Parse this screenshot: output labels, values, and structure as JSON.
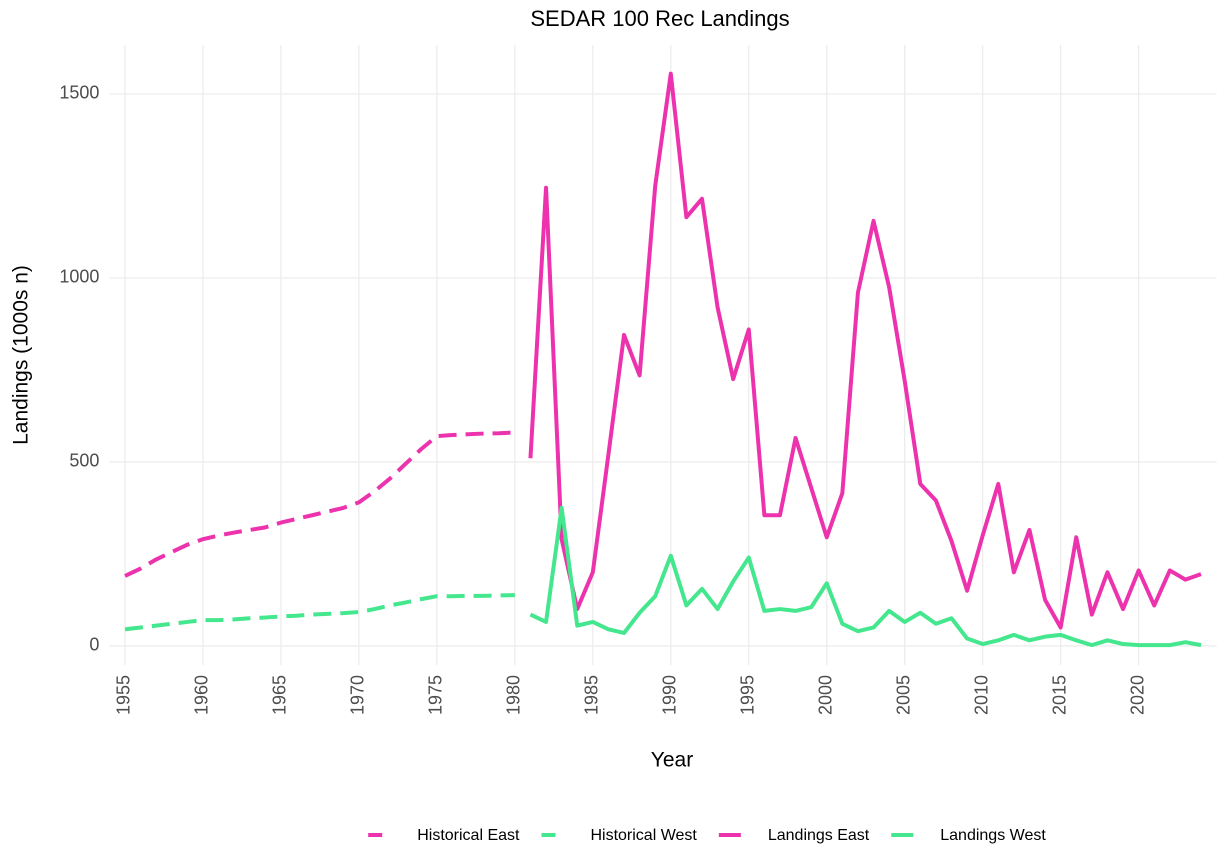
{
  "chart_data": {
    "type": "line",
    "title": "SEDAR 100 Rec Landings",
    "xlabel": "Year",
    "ylabel": "Landings (1000s n)",
    "x": [
      1955,
      1956,
      1957,
      1958,
      1959,
      1960,
      1961,
      1962,
      1963,
      1964,
      1965,
      1966,
      1967,
      1968,
      1969,
      1970,
      1971,
      1972,
      1973,
      1974,
      1975,
      1976,
      1977,
      1978,
      1979,
      1980,
      1981,
      1982,
      1983,
      1984,
      1985,
      1986,
      1987,
      1988,
      1989,
      1990,
      1991,
      1992,
      1993,
      1994,
      1995,
      1996,
      1997,
      1998,
      1999,
      2000,
      2001,
      2002,
      2003,
      2004,
      2005,
      2006,
      2007,
      2008,
      2009,
      2010,
      2011,
      2012,
      2013,
      2014,
      2015,
      2016,
      2017,
      2018,
      2019,
      2020,
      2021,
      2022,
      2023,
      2024
    ],
    "series": [
      {
        "name": "Historical East",
        "color": "#ec33ad",
        "linestyle": "dashed",
        "values": [
          190,
          210,
          235,
          255,
          275,
          290,
          300,
          308,
          315,
          322,
          335,
          345,
          355,
          365,
          375,
          390,
          420,
          455,
          495,
          535,
          570,
          573,
          575,
          577,
          578,
          580,
          null,
          null,
          null,
          null,
          null,
          null,
          null,
          null,
          null,
          null,
          null,
          null,
          null,
          null,
          null,
          null,
          null,
          null,
          null,
          null,
          null,
          null,
          null,
          null,
          null,
          null,
          null,
          null,
          null,
          null,
          null,
          null,
          null,
          null,
          null,
          null,
          null,
          null,
          null,
          null,
          null,
          null,
          null,
          null
        ]
      },
      {
        "name": "Historical West",
        "color": "#44e68e",
        "linestyle": "dashed",
        "values": [
          45,
          50,
          55,
          60,
          65,
          70,
          70,
          72,
          75,
          77,
          80,
          82,
          85,
          87,
          89,
          92,
          100,
          110,
          118,
          127,
          135,
          135,
          136,
          136,
          137,
          138,
          null,
          null,
          null,
          null,
          null,
          null,
          null,
          null,
          null,
          null,
          null,
          null,
          null,
          null,
          null,
          null,
          null,
          null,
          null,
          null,
          null,
          null,
          null,
          null,
          null,
          null,
          null,
          null,
          null,
          null,
          null,
          null,
          null,
          null,
          null,
          null,
          null,
          null,
          null,
          null,
          null,
          null,
          null,
          null
        ]
      },
      {
        "name": "Landings East",
        "color": "#ec33ad",
        "linestyle": "solid",
        "values": [
          null,
          null,
          null,
          null,
          null,
          null,
          null,
          null,
          null,
          null,
          null,
          null,
          null,
          null,
          null,
          null,
          null,
          null,
          null,
          null,
          null,
          null,
          null,
          null,
          null,
          null,
          510,
          1245,
          290,
          100,
          200,
          520,
          845,
          735,
          1250,
          1555,
          1165,
          1215,
          920,
          725,
          860,
          355,
          355,
          565,
          430,
          295,
          415,
          960,
          1155,
          975,
          720,
          440,
          395,
          285,
          150,
          300,
          440,
          200,
          315,
          125,
          50,
          295,
          85,
          200,
          100,
          205,
          110,
          205,
          180,
          195
        ]
      },
      {
        "name": "Landings West",
        "color": "#44e68e",
        "linestyle": "solid",
        "values": [
          null,
          null,
          null,
          null,
          null,
          null,
          null,
          null,
          null,
          null,
          null,
          null,
          null,
          null,
          null,
          null,
          null,
          null,
          null,
          null,
          null,
          null,
          null,
          null,
          null,
          null,
          85,
          65,
          375,
          55,
          65,
          45,
          35,
          90,
          135,
          245,
          110,
          155,
          100,
          175,
          240,
          95,
          100,
          95,
          105,
          170,
          60,
          40,
          50,
          95,
          65,
          90,
          60,
          75,
          20,
          5,
          15,
          30,
          15,
          25,
          30,
          15,
          2,
          15,
          5,
          2,
          2,
          2,
          10,
          2
        ]
      }
    ],
    "xlim": [
      1954,
      2025
    ],
    "xticks": [
      1955,
      1960,
      1965,
      1970,
      1975,
      1980,
      1985,
      1990,
      1995,
      2000,
      2005,
      2010,
      2015,
      2020
    ],
    "ylim": [
      -52,
      1633
    ],
    "yticks": [
      0,
      500,
      1000,
      1500
    ],
    "grid": true,
    "legend": "bottom"
  }
}
